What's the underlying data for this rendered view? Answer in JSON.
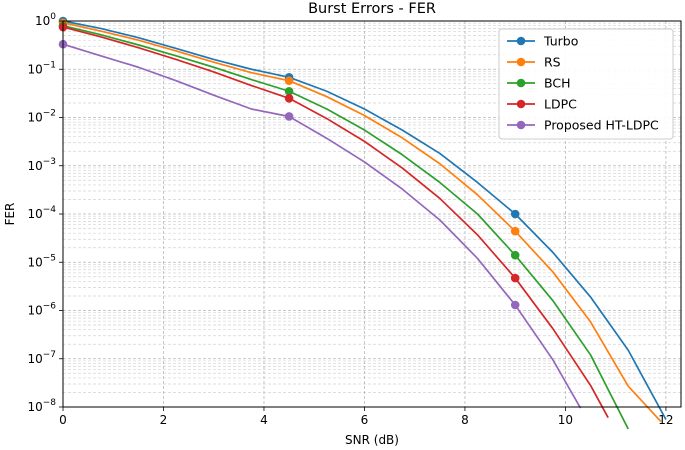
{
  "chart_data": {
    "type": "line",
    "title": "Burst Errors - FER",
    "xlabel": "SNR (dB)",
    "ylabel": "FER",
    "xlim": [
      0,
      12.3
    ],
    "ylim": [
      1e-08,
      1
    ],
    "yscale": "log",
    "xticks": [
      0,
      2,
      4,
      6,
      8,
      10,
      12
    ],
    "xtick_labels": [
      "0",
      "2",
      "4",
      "6",
      "8",
      "10",
      "12"
    ],
    "yticks": [
      1,
      0.1,
      0.01,
      0.001,
      0.0001,
      1e-05,
      1e-06,
      1e-07,
      1e-08
    ],
    "ytick_labels": [
      {
        "base": "10",
        "exp": "0"
      },
      {
        "base": "10",
        "exp": "−1"
      },
      {
        "base": "10",
        "exp": "−2"
      },
      {
        "base": "10",
        "exp": "−3"
      },
      {
        "base": "10",
        "exp": "−4"
      },
      {
        "base": "10",
        "exp": "−5"
      },
      {
        "base": "10",
        "exp": "−6"
      },
      {
        "base": "10",
        "exp": "−7"
      },
      {
        "base": "10",
        "exp": "−8"
      }
    ],
    "grid": true,
    "legend_position": "top-right",
    "series": [
      {
        "name": "Turbo",
        "color": "#1f77b4",
        "x": [
          0,
          0.75,
          1.5,
          2.25,
          3,
          3.75,
          4.5,
          5.25,
          6,
          6.75,
          7.5,
          8.25,
          9,
          9.75,
          10.5,
          11.25,
          12
        ],
        "y": [
          1.0,
          0.7,
          0.45,
          0.27,
          0.16,
          0.1,
          0.068,
          0.035,
          0.015,
          0.0055,
          0.0018,
          0.00045,
          0.0001,
          1.6e-05,
          1.9e-06,
          1.5e-07,
          5.5e-09
        ],
        "markers": [
          [
            0,
            1.0
          ],
          [
            4.5,
            0.068
          ],
          [
            9,
            0.0001
          ]
        ]
      },
      {
        "name": "RS",
        "color": "#ff7f0e",
        "x": [
          0,
          0.75,
          1.5,
          2.25,
          3,
          3.75,
          4.5,
          5.25,
          6,
          6.75,
          7.5,
          8.25,
          9,
          9.75,
          10.5,
          11.25,
          11.9
        ],
        "y": [
          0.92,
          0.62,
          0.4,
          0.24,
          0.14,
          0.085,
          0.058,
          0.027,
          0.011,
          0.0038,
          0.0011,
          0.00025,
          4.4e-05,
          6.3e-06,
          5.8e-07,
          2.7e-08,
          5e-09
        ],
        "markers": [
          [
            0,
            0.92
          ],
          [
            4.5,
            0.058
          ],
          [
            9,
            4.4e-05
          ]
        ]
      },
      {
        "name": "BCH",
        "color": "#2ca02c",
        "x": [
          0,
          0.75,
          1.5,
          2.25,
          3,
          3.75,
          4.5,
          5.25,
          6,
          6.75,
          7.5,
          8.25,
          9,
          9.75,
          10.5,
          11.25
        ],
        "y": [
          0.8,
          0.52,
          0.32,
          0.19,
          0.11,
          0.061,
          0.035,
          0.015,
          0.0055,
          0.0017,
          0.00045,
          0.0001,
          1.4e-05,
          1.6e-06,
          1.2e-07,
          3.5e-09
        ],
        "markers": [
          [
            0,
            0.8
          ],
          [
            4.5,
            0.035
          ],
          [
            9,
            1.4e-05
          ]
        ]
      },
      {
        "name": "LDPC",
        "color": "#d62728",
        "x": [
          0,
          0.75,
          1.5,
          2.25,
          3,
          3.75,
          4.5,
          5.25,
          6,
          6.75,
          7.5,
          8.25,
          9,
          9.75,
          10.5,
          10.85
        ],
        "y": [
          0.75,
          0.47,
          0.28,
          0.16,
          0.088,
          0.046,
          0.025,
          0.0095,
          0.0032,
          0.0009,
          0.00021,
          3.7e-05,
          4.7e-06,
          4.2e-07,
          2.8e-08,
          6e-09
        ],
        "markers": [
          [
            0,
            0.75
          ],
          [
            4.5,
            0.025
          ],
          [
            9,
            4.7e-06
          ]
        ]
      },
      {
        "name": "Proposed HT-LDPC",
        "color": "#9467bd",
        "x": [
          0,
          0.75,
          1.5,
          2.25,
          3,
          3.75,
          4.5,
          5.25,
          6,
          6.75,
          7.5,
          8.25,
          9,
          9.75,
          10.3
        ],
        "y": [
          0.33,
          0.19,
          0.11,
          0.058,
          0.029,
          0.015,
          0.0105,
          0.0037,
          0.0012,
          0.00033,
          7.5e-05,
          1.2e-05,
          1.3e-06,
          9.5e-08,
          9.5e-09
        ],
        "markers": [
          [
            0,
            0.33
          ],
          [
            4.5,
            0.0105
          ],
          [
            9,
            1.3e-06
          ]
        ]
      }
    ]
  }
}
